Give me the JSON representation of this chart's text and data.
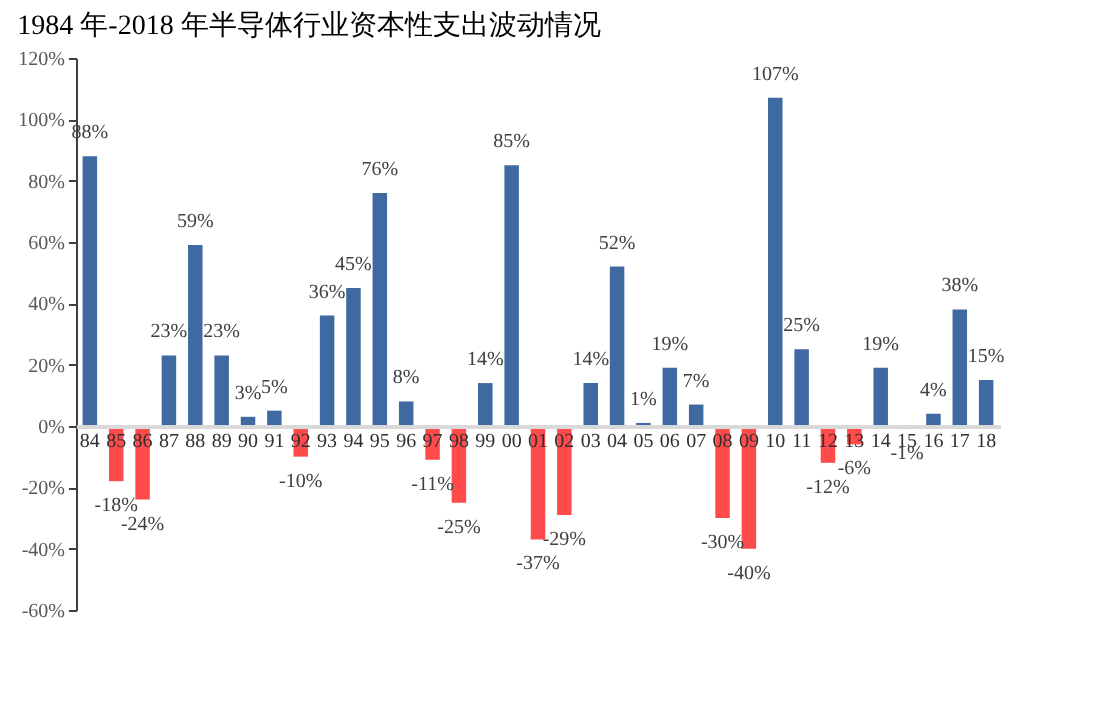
{
  "chart_data": {
    "type": "bar",
    "title": "1984 年-2018 年半导体行业资本性支出波动情况",
    "categories": [
      "84",
      "85",
      "86",
      "87",
      "88",
      "89",
      "90",
      "91",
      "92",
      "93",
      "94",
      "95",
      "96",
      "97",
      "98",
      "99",
      "00",
      "01",
      "02",
      "03",
      "04",
      "05",
      "06",
      "07",
      "08",
      "09",
      "10",
      "11",
      "12",
      "13",
      "14",
      "15",
      "16",
      "17",
      "18"
    ],
    "values": [
      88,
      -18,
      -24,
      23,
      59,
      23,
      3,
      5,
      -10,
      36,
      45,
      76,
      8,
      -11,
      -25,
      14,
      85,
      -37,
      -29,
      14,
      52,
      1,
      19,
      7,
      -30,
      -40,
      107,
      25,
      -12,
      -6,
      19,
      -1,
      4,
      38,
      15
    ],
    "colors": [
      "#3f6aa1",
      "#ff4b4b",
      "#ff4b4b",
      "#3f6aa1",
      "#3f6aa1",
      "#3f6aa1",
      "#3f6aa1",
      "#3f6aa1",
      "#ff4b4b",
      "#3f6aa1",
      "#3f6aa1",
      "#3f6aa1",
      "#3f6aa1",
      "#ff4b4b",
      "#ff4b4b",
      "#3f6aa1",
      "#3f6aa1",
      "#ff4b4b",
      "#ff4b4b",
      "#3f6aa1",
      "#3f6aa1",
      "#3f6aa1",
      "#3f6aa1",
      "#3f6aa1",
      "#ff4b4b",
      "#ff4b4b",
      "#3f6aa1",
      "#3f6aa1",
      "#ff4b4b",
      "#ff4b4b",
      "#3f6aa1",
      "#ff4b4b",
      "#3f6aa1",
      "#3f6aa1",
      "#3f6aa1"
    ],
    "value_labels": [
      "88%",
      "-18%",
      "-24%",
      "23%",
      "59%",
      "23%",
      "3%",
      "5%",
      "-10%",
      "36%",
      "45%",
      "76%",
      "8%",
      "-11%",
      "-25%",
      "14%",
      "85%",
      "-37%",
      "-29%",
      "14%",
      "52%",
      "1%",
      "19%",
      "7%",
      "-30%",
      "-40%",
      "107%",
      "25%",
      "-12%",
      "-6%",
      "19%",
      "-1%",
      "4%",
      "38%",
      "15%"
    ],
    "ylim": [
      -60,
      120
    ],
    "yticks": [
      {
        "value": -60,
        "label": "-60%"
      },
      {
        "value": -40,
        "label": "-40%"
      },
      {
        "value": -20,
        "label": "-20%"
      },
      {
        "value": 0,
        "label": "0%"
      },
      {
        "value": 20,
        "label": "20%"
      },
      {
        "value": 40,
        "label": "40%"
      },
      {
        "value": 60,
        "label": "60%"
      },
      {
        "value": 80,
        "label": "80%"
      },
      {
        "value": 100,
        "label": "100%"
      },
      {
        "value": 120,
        "label": "120%"
      }
    ],
    "grid": false
  }
}
